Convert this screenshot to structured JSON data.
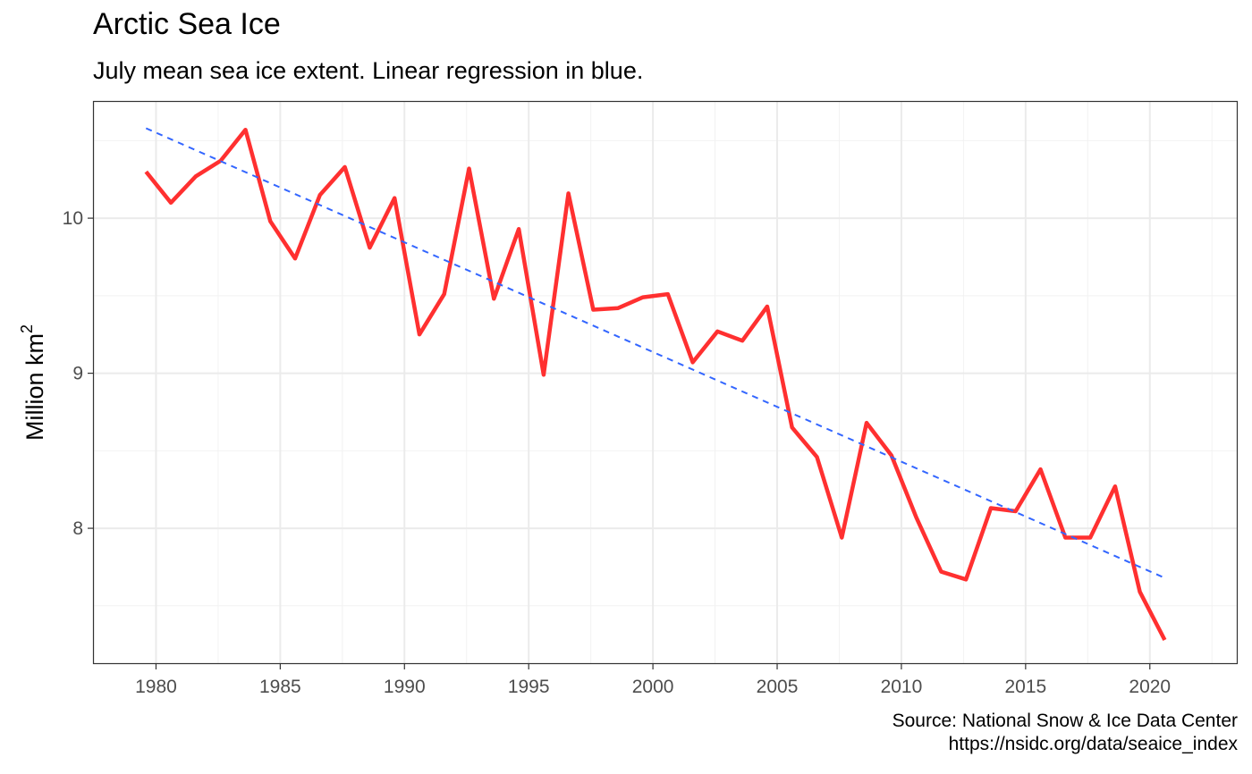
{
  "chart_data": {
    "type": "line",
    "title": "Arctic Sea Ice",
    "subtitle": "July mean sea ice extent. Linear regression in blue.",
    "ylabel": "Million km",
    "ylabel_superscript": "2",
    "xlabel": "",
    "caption": [
      "Source: National Snow & Ice Data Center",
      "https://nsidc.org/data/seaice_index"
    ],
    "xlim": [
      1977.5,
      2023.5
    ],
    "ylim": [
      7.13,
      10.75
    ],
    "x_ticks": [
      1980,
      1985,
      1990,
      1995,
      2000,
      2005,
      2010,
      2015,
      2020
    ],
    "x_tick_labels": [
      "1980",
      "1985",
      "1990",
      "1995",
      "2000",
      "2005",
      "2010",
      "2015",
      "2020"
    ],
    "y_ticks": [
      8,
      9,
      10
    ],
    "y_tick_labels": [
      "8",
      "9",
      "10"
    ],
    "grid": true,
    "legend": "none",
    "series": [
      {
        "color": "#ff3030",
        "style": "solid",
        "x": [
          1979.6,
          1980.6,
          1981.6,
          1982.6,
          1983.6,
          1984.6,
          1985.6,
          1986.6,
          1987.6,
          1988.6,
          1989.6,
          1990.6,
          1991.6,
          1992.6,
          1993.6,
          1994.6,
          1995.6,
          1996.6,
          1997.6,
          1998.6,
          1999.6,
          2000.6,
          2001.6,
          2002.6,
          2003.6,
          2004.6,
          2005.6,
          2006.6,
          2007.6,
          2008.6,
          2009.6,
          2010.6,
          2011.6,
          2012.6,
          2013.6,
          2014.6,
          2015.6,
          2016.6,
          2017.6,
          2018.6,
          2019.6,
          2020.6
        ],
        "values": [
          10.3,
          10.1,
          10.27,
          10.37,
          10.57,
          9.98,
          9.74,
          10.15,
          10.33,
          9.81,
          10.13,
          9.25,
          9.51,
          10.32,
          9.48,
          9.93,
          8.99,
          10.16,
          9.41,
          9.42,
          9.49,
          9.51,
          9.07,
          9.27,
          9.21,
          9.43,
          8.65,
          8.46,
          7.94,
          8.68,
          8.47,
          8.07,
          7.72,
          7.67,
          8.13,
          8.11,
          8.38,
          7.94,
          7.94,
          8.27,
          7.59,
          7.28
        ]
      },
      {
        "color": "#3366ff",
        "style": "dashed",
        "x": [
          1979.6,
          2020.6
        ],
        "values": [
          10.58,
          7.68
        ]
      }
    ]
  }
}
